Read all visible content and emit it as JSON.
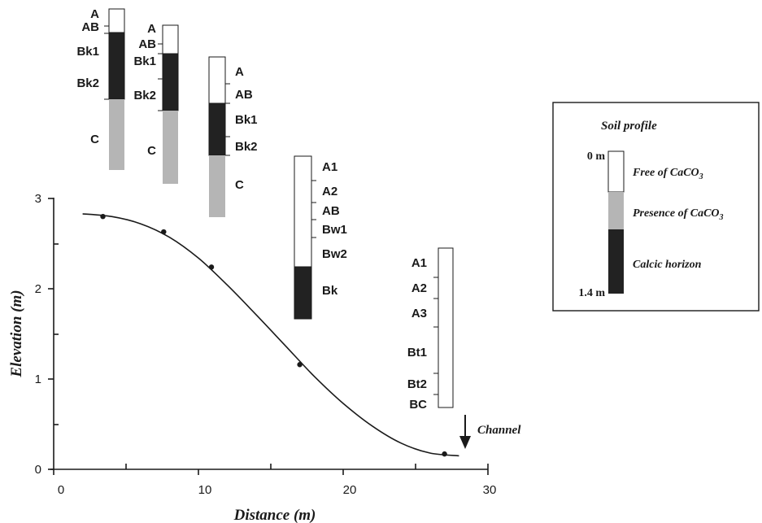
{
  "axes": {
    "xlabel": "Distance (m)",
    "ylabel": "Elevation (m)",
    "xticks": [
      "0",
      "10",
      "20",
      "30"
    ],
    "yticks": [
      "0",
      "1",
      "2",
      "3"
    ]
  },
  "annotation": {
    "channel": "Channel"
  },
  "profiles": [
    {
      "labels": [
        "A",
        "AB",
        "Bk1",
        "Bk2",
        "C"
      ]
    },
    {
      "labels": [
        "A",
        "AB",
        "Bk1",
        "Bk2",
        "C"
      ]
    },
    {
      "labels": [
        "A",
        "AB",
        "Bk1",
        "Bk2",
        "C"
      ]
    },
    {
      "labels": [
        "A1",
        "A2",
        "AB",
        "Bw1",
        "Bw2",
        "Bk"
      ]
    },
    {
      "labels": [
        "A1",
        "A2",
        "A3",
        "Bt1",
        "Bt2",
        "BC"
      ]
    }
  ],
  "legend": {
    "title": "Soil profile",
    "depth_top": "0 m",
    "depth_bottom": "1.4 m",
    "items": [
      "Free of CaCO",
      "Presence of CaCO",
      "Calcic horizon"
    ],
    "subscript": "3",
    "colors": {
      "free": "#ffffff",
      "presence": "#b5b5b5",
      "calcic": "#222222"
    }
  },
  "chart_data": {
    "type": "line",
    "xlabel": "Distance (m)",
    "ylabel": "Elevation (m)",
    "xlim": [
      0,
      30
    ],
    "ylim": [
      0,
      3
    ],
    "series": [
      {
        "points": [
          [
            3.4,
            2.8
          ],
          [
            7.6,
            2.63
          ],
          [
            10.9,
            2.24
          ],
          [
            17.0,
            1.16
          ],
          [
            27.0,
            0.17
          ]
        ]
      }
    ],
    "curve_x": [
      2,
      4,
      6,
      8,
      10,
      12,
      14,
      16,
      18,
      20,
      22,
      24,
      26,
      28
    ],
    "curve_y": [
      2.83,
      2.8,
      2.72,
      2.57,
      2.34,
      2.04,
      1.71,
      1.37,
      1.03,
      0.73,
      0.48,
      0.29,
      0.18,
      0.15
    ]
  }
}
